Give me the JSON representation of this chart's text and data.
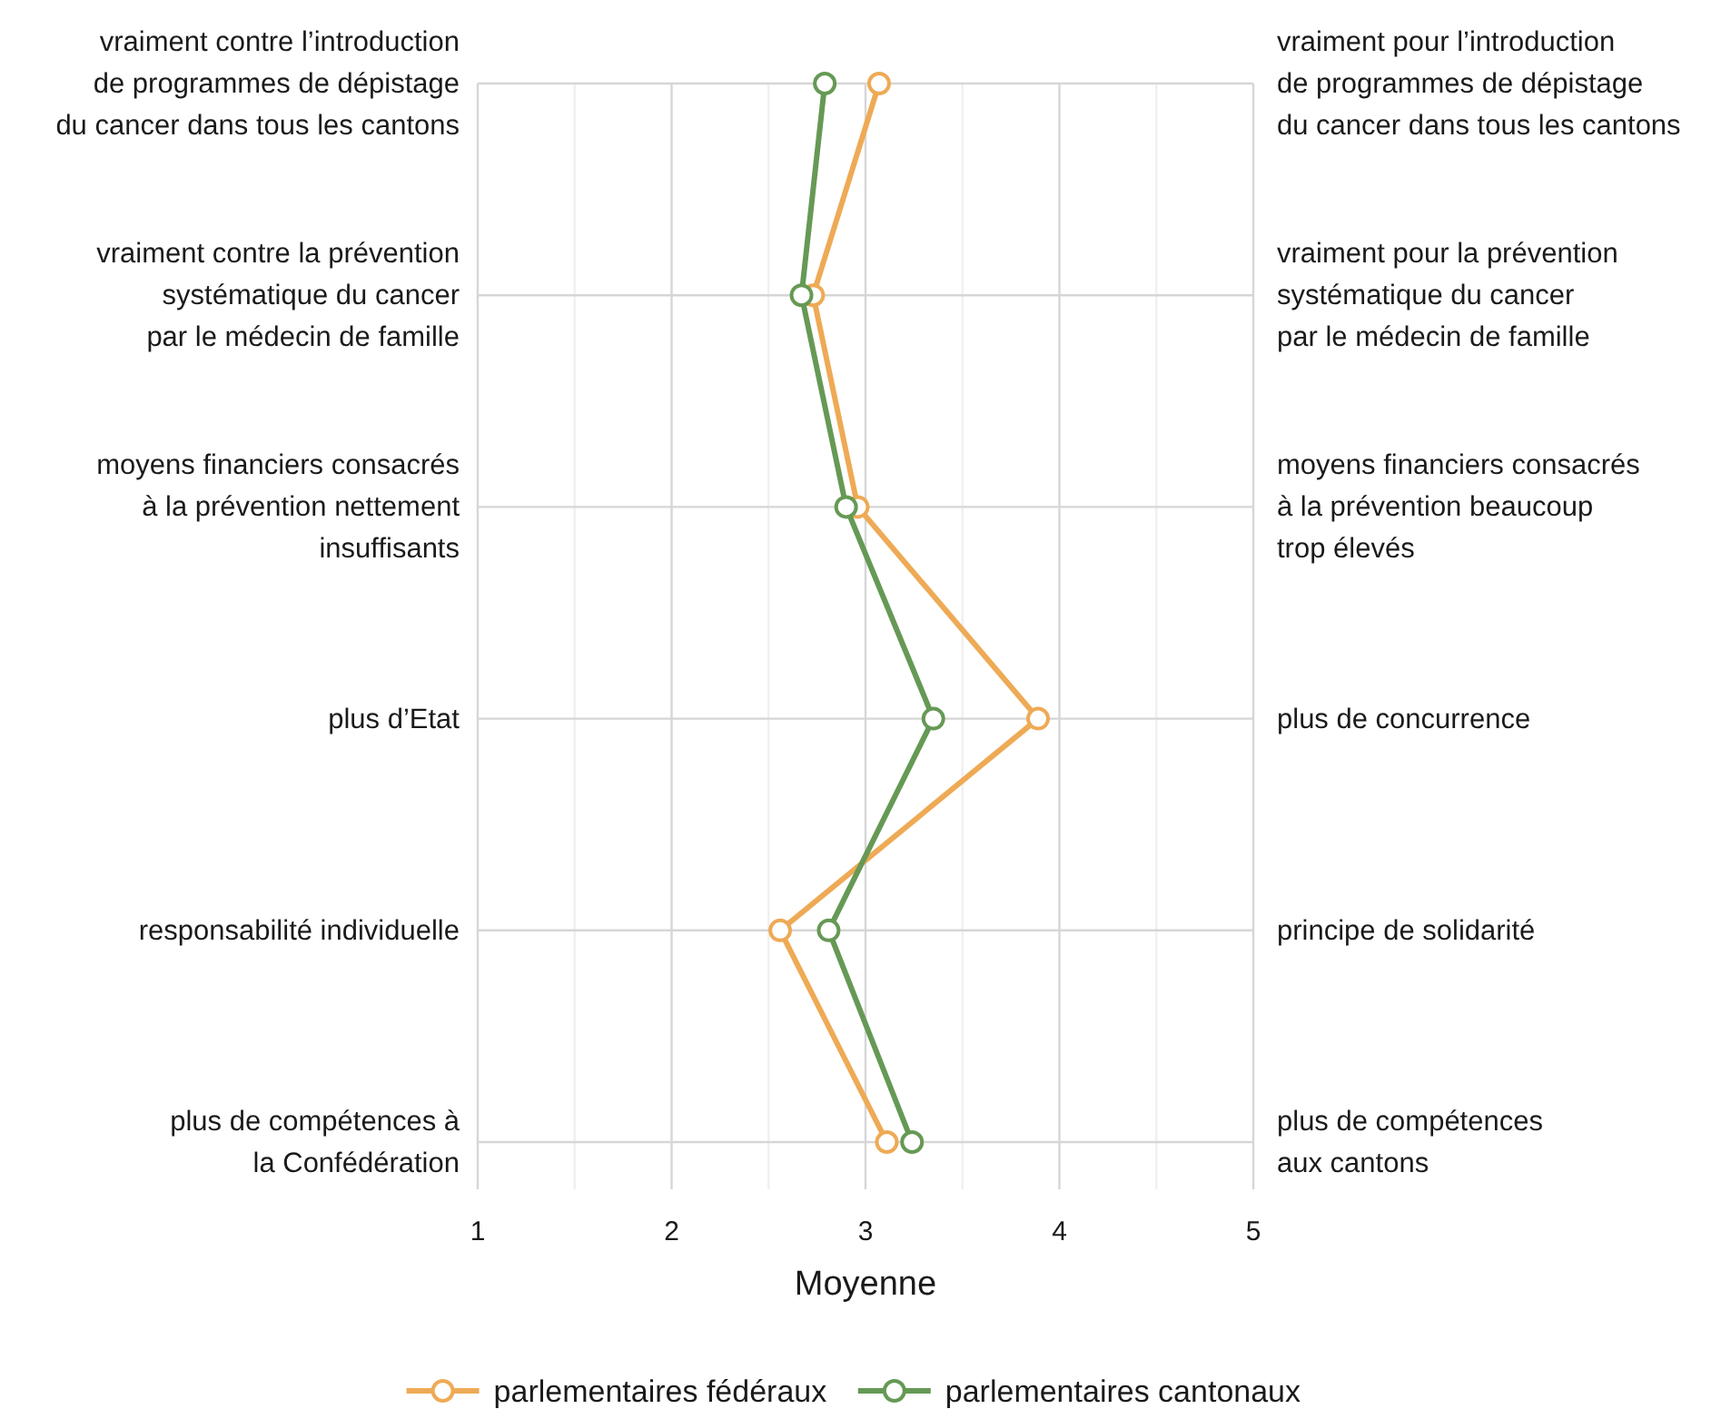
{
  "chart_data": {
    "type": "line",
    "orientation": "horizontal",
    "xlabel": "Moyenne",
    "categories": [
      "vraiment contre l’introduction\nde programmes de dépistage\ndu cancer dans tous les cantons",
      "vraiment contre la prévention\nsystématique du cancer\npar le médecin de famille",
      "moyens financiers consacrés\nà la prévention nettement\ninsuffisants",
      "plus d’Etat",
      "responsabilité individuelle",
      "plus de compétences à\nla Confédération"
    ],
    "y2_categories": [
      "vraiment pour l’introduction\nde programmes de dépistage\ndu cancer dans tous les cantons",
      "vraiment pour la prévention\nsystématique du cancer\npar le médecin de famille",
      "moyens financiers consacrés\nà la prévention beaucoup\ntrop élevés",
      "plus de concurrence",
      "principe de solidarité",
      "plus de compétences\naux cantons"
    ],
    "series": [
      {
        "name": "parlementaires fédéraux",
        "color": "#eeaa55",
        "values": [
          3.07,
          2.73,
          2.96,
          3.89,
          2.56,
          3.11
        ]
      },
      {
        "name": "parlementaires cantonaux",
        "color": "#669955",
        "values": [
          2.79,
          2.67,
          2.9,
          3.35,
          2.81,
          3.24
        ]
      }
    ],
    "xlim": [
      1,
      5
    ],
    "xticks": [
      1,
      {
        "value": 1.5,
        "label": null
      },
      2,
      {
        "value": 2.5,
        "label": null
      },
      3,
      {
        "value": 3.5,
        "label": null
      },
      4,
      {
        "value": 4.5,
        "label": null
      },
      5
    ],
    "grid": true,
    "legend": "bottom",
    "marker": "circle",
    "line_style": "solid"
  }
}
